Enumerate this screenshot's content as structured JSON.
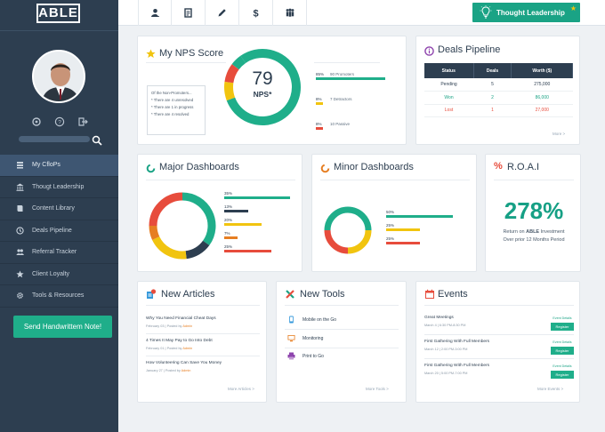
{
  "app": {
    "logo": "ABLE"
  },
  "sidebar": {
    "avatar_alt": "profile-photo",
    "nav": [
      {
        "label": "My CfloPs",
        "icon": "stack-icon",
        "active": true
      },
      {
        "label": "Thougt Leadership",
        "icon": "bank-icon",
        "active": false
      },
      {
        "label": "Content Library",
        "icon": "book-icon",
        "active": false
      },
      {
        "label": "Deals Pipeline",
        "icon": "clock-icon",
        "active": false
      },
      {
        "label": "Referral Tracker",
        "icon": "users-icon",
        "active": false
      },
      {
        "label": "Client Loyalty",
        "icon": "star-icon",
        "active": false
      },
      {
        "label": "Tools & Resources",
        "icon": "gear-icon",
        "active": false
      }
    ],
    "send_button": "Send Handwrittem Note!"
  },
  "topbar": {
    "icons": [
      "user-icon",
      "document-icon",
      "pencil-icon",
      "dollar-icon",
      "people-icon"
    ],
    "thought_button": "Thought Leadership"
  },
  "nps": {
    "title": "My NPS Score",
    "score": "79",
    "score_label": "NPS*",
    "note_title": "Of the Non-Promoters...",
    "note_lines": [
      "* There are 4 unresolved",
      "* There are 1 in progress",
      "* There are 4 resolved"
    ],
    "bars": [
      {
        "pct": "85%",
        "label": "90 Promoters",
        "value": 0.85,
        "color": "#1fae8a"
      },
      {
        "pct": "8%",
        "label": "7 Detractors",
        "value": 0.08,
        "color": "#f1c40f"
      },
      {
        "pct": "8%",
        "label": "10 Passive",
        "value": 0.08,
        "color": "#e74c3c"
      }
    ]
  },
  "deals": {
    "title": "Deals Pipeline",
    "headers": [
      "Status",
      "Deals",
      "Worth ($)"
    ],
    "rows": [
      {
        "status": "Pending",
        "deals": "5",
        "worth": "275,000",
        "color": "#2d3e50"
      },
      {
        "status": "Won",
        "deals": "2",
        "worth": "86,000",
        "color": "#1aa385"
      },
      {
        "status": "Lost",
        "deals": "1",
        "worth": "27,000",
        "color": "#e74c3c"
      }
    ],
    "more": "More >"
  },
  "major": {
    "title": "Major Dashboards",
    "bars": [
      {
        "pct": "35%",
        "value": 0.35,
        "color": "#1fae8a"
      },
      {
        "pct": "13%",
        "value": 0.13,
        "color": "#2d3e50"
      },
      {
        "pct": "20%",
        "value": 0.2,
        "color": "#f1c40f"
      },
      {
        "pct": "7%",
        "value": 0.07,
        "color": "#e67e22"
      },
      {
        "pct": "25%",
        "value": 0.25,
        "color": "#e74c3c"
      }
    ]
  },
  "minor": {
    "title": "Minor Dashboards",
    "bars": [
      {
        "pct": "50%",
        "value": 0.5,
        "color": "#1fae8a"
      },
      {
        "pct": "25%",
        "value": 0.25,
        "color": "#f1c40f"
      },
      {
        "pct": "25%",
        "value": 0.25,
        "color": "#e74c3c"
      }
    ]
  },
  "roai": {
    "title": "R.O.A.I",
    "value": "278%",
    "line1_pre": "Return on ",
    "line1_bold": "ABLE",
    "line1_post": " Investment",
    "line2": "Over prior 12 Months Period"
  },
  "articles": {
    "title": "New Articles",
    "items": [
      {
        "title": "Why You Need Financial Cheat Days",
        "date": "February 03 | Posted by ",
        "author": "Admin"
      },
      {
        "title": "4 Times It May Pay to Go Into Debt",
        "date": "February 01 | Posted by ",
        "author": "Admin"
      },
      {
        "title": "How Volunteering Can Save You Money",
        "date": "January 27 | Posted by ",
        "author": "Admin"
      }
    ],
    "more": "More Articles >"
  },
  "tools": {
    "title": "New Tools",
    "items": [
      {
        "label": "Mobile on the Go",
        "icon": "mobile-icon"
      },
      {
        "label": "Monitoring",
        "icon": "monitor-icon"
      },
      {
        "label": "Print to Go",
        "icon": "printer-icon"
      }
    ],
    "more": "More Tools >"
  },
  "events": {
    "title": "Events",
    "items": [
      {
        "title": "Great Meetings",
        "date": "March 4 | 6:30 PM-8:30 PM"
      },
      {
        "title": "First Gathering With Full Members",
        "date": "March 12 | 2:00 PM-3:00 PM"
      },
      {
        "title": "First Gathering With Full Members",
        "date": "March 20 | 5:00 PM-7:00 PM"
      }
    ],
    "details": "Event Details",
    "register": "Register",
    "more": "More Events >"
  }
}
